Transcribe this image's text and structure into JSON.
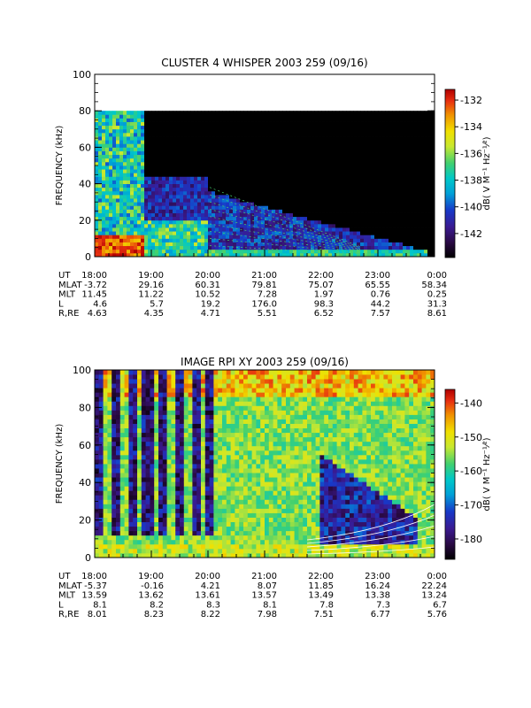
{
  "chart_data": [
    {
      "type": "heatmap",
      "title": "CLUSTER 4 WHISPER 2003 259 (09/16)",
      "ylabel": "FREQUENCY (kHz)",
      "ylim": [
        0,
        100
      ],
      "yticks": [
        "0",
        "20",
        "40",
        "60",
        "80",
        "100"
      ],
      "xlim_hours": [
        18,
        24
      ],
      "colorbar": {
        "label": "dB( V M⁻¹ Hz⁻¹⁄²)",
        "ticks": [
          "-132",
          "-134",
          "-136",
          "-138",
          "-140",
          "-142"
        ],
        "tick_values": [
          -132,
          -134,
          -136,
          -138,
          -140,
          -142
        ],
        "range": [
          -143.8,
          -131.2
        ]
      },
      "ephemeris": {
        "labels": [
          "UT",
          "MLAT",
          "MLT",
          "L",
          "R,RE"
        ],
        "columns": [
          [
            "18:00",
            "-3.72",
            "11.45",
            "4.6",
            "4.63"
          ],
          [
            "19:00",
            "29.16",
            "11.22",
            "5.7",
            "4.35"
          ],
          [
            "20:00",
            "60.31",
            "10.52",
            "19.2",
            "4.71"
          ],
          [
            "21:00",
            "79.81",
            "7.28",
            "176.0",
            "5.51"
          ],
          [
            "22:00",
            "75.07",
            "1.97",
            "98.3",
            "6.52"
          ],
          [
            "23:00",
            "65.55",
            "0.76",
            "44.2",
            "7.57"
          ],
          [
            "0:00",
            "58.34",
            "0.25",
            "31.3",
            "8.61"
          ]
        ]
      }
    },
    {
      "type": "heatmap",
      "title": "IMAGE RPI XY 2003 259 (09/16)",
      "ylabel": "FREQUENCY (kHz)",
      "ylim": [
        0,
        100
      ],
      "yticks": [
        "0",
        "20",
        "40",
        "60",
        "80",
        "100"
      ],
      "xlim_hours": [
        18,
        24
      ],
      "colorbar": {
        "label": "dB( V M⁻¹ Hz⁻¹⁄²)",
        "ticks": [
          "-140",
          "-150",
          "-160",
          "-170",
          "-180"
        ],
        "tick_values": [
          -140,
          -150,
          -160,
          -170,
          -180
        ],
        "range": [
          -186,
          -136
        ]
      },
      "ephemeris": {
        "labels": [
          "UT",
          "MLAT",
          "MLT",
          "L",
          "R,RE"
        ],
        "columns": [
          [
            "18:00",
            "-5.37",
            "13.59",
            "8.1",
            "8.01"
          ],
          [
            "19:00",
            "-0.16",
            "13.62",
            "8.2",
            "8.23"
          ],
          [
            "20:00",
            "4.21",
            "13.61",
            "8.3",
            "8.22"
          ],
          [
            "21:00",
            "8.07",
            "13.57",
            "8.1",
            "7.98"
          ],
          [
            "22:00",
            "11.85",
            "13.49",
            "7.8",
            "7.51"
          ],
          [
            "23:00",
            "16.24",
            "13.38",
            "7.3",
            "6.77"
          ],
          [
            "0:00",
            "22.24",
            "13.24",
            "6.7",
            "5.76"
          ]
        ]
      }
    }
  ],
  "colors": {
    "axis": "#000000",
    "background": "#ffffff",
    "colormap": [
      "#000000",
      "#2a0a45",
      "#3a1a90",
      "#1838c8",
      "#00a0d8",
      "#00c8c8",
      "#40d070",
      "#c8e830",
      "#f0e000",
      "#f09000",
      "#e83010",
      "#b00000"
    ]
  }
}
